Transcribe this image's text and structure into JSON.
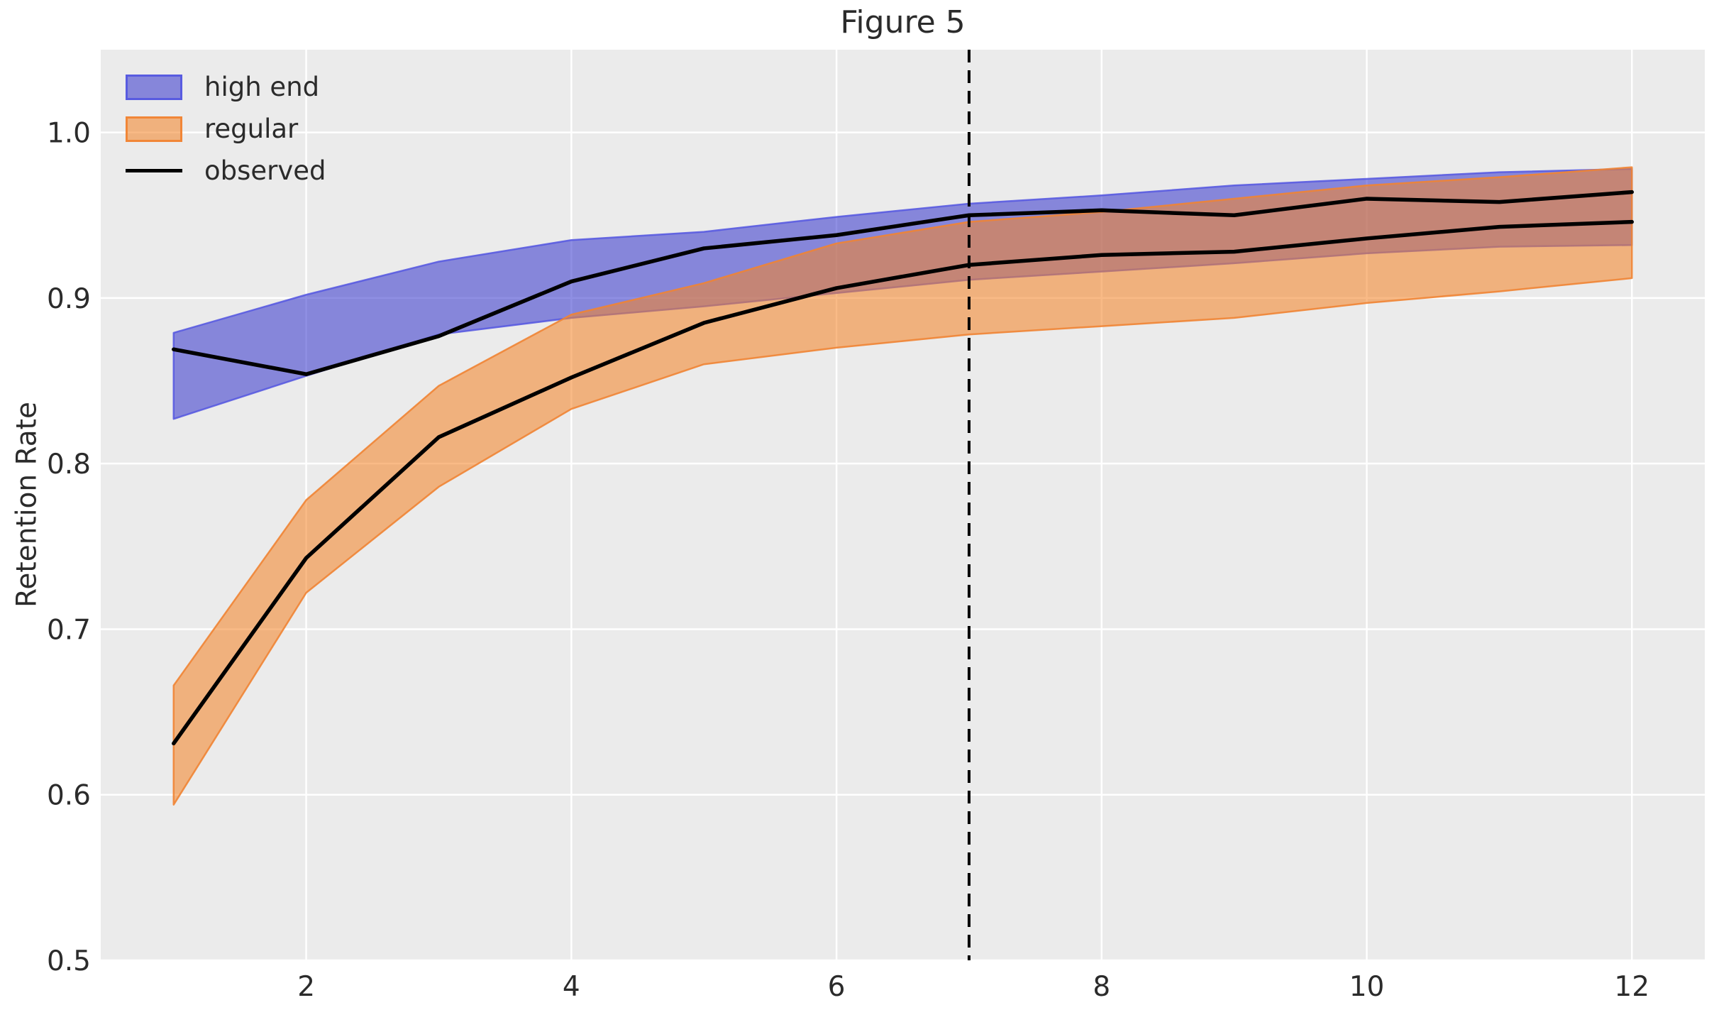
{
  "figure": {
    "title": "Figure 5",
    "ylabel": "Retention Rate"
  },
  "legend": {
    "position": "upper left",
    "items": [
      {
        "label": "high end",
        "swatch": "patch",
        "color_key": "high_end"
      },
      {
        "label": "regular",
        "swatch": "patch",
        "color_key": "regular"
      },
      {
        "label": "observed",
        "swatch": "line",
        "color_key": "observed"
      }
    ]
  },
  "colors": {
    "figure_background": "#ffffff",
    "axes_background": "#ebebeb",
    "grid": "#ffffff",
    "high_end_fill": "#3333cc",
    "high_end_edge": "#5356e0",
    "regular_fill": "#f58427",
    "regular_edge": "#f08434",
    "observed_line": "#000000",
    "vline": "#000000",
    "text": "#2b2b2b"
  },
  "chart_data": {
    "type": "area",
    "title": "Figure 5",
    "xlabel": "",
    "ylabel": "Retention Rate",
    "grid": true,
    "x": [
      1,
      2,
      3,
      4,
      5,
      6,
      7,
      8,
      9,
      10,
      11,
      12
    ],
    "series": [
      {
        "name": "high end",
        "kind": "band",
        "upper": [
          0.879,
          0.902,
          0.922,
          0.935,
          0.94,
          0.949,
          0.957,
          0.962,
          0.968,
          0.972,
          0.976,
          0.978
        ],
        "lower": [
          0.827,
          0.853,
          0.878,
          0.888,
          0.895,
          0.903,
          0.911,
          0.916,
          0.921,
          0.927,
          0.931,
          0.932
        ]
      },
      {
        "name": "regular",
        "kind": "band",
        "upper": [
          0.666,
          0.778,
          0.847,
          0.89,
          0.909,
          0.933,
          0.946,
          0.952,
          0.96,
          0.968,
          0.973,
          0.979
        ],
        "lower": [
          0.594,
          0.722,
          0.786,
          0.833,
          0.86,
          0.87,
          0.878,
          0.883,
          0.888,
          0.897,
          0.904,
          0.912
        ]
      },
      {
        "name": "observed (high end)",
        "kind": "line",
        "values": [
          0.869,
          0.854,
          0.877,
          0.91,
          0.93,
          0.938,
          0.95,
          0.953,
          0.95,
          0.96,
          0.958,
          0.964
        ]
      },
      {
        "name": "observed (regular)",
        "kind": "line",
        "values": [
          0.631,
          0.743,
          0.816,
          0.852,
          0.885,
          0.906,
          0.92,
          0.926,
          0.928,
          0.936,
          0.943,
          0.946
        ]
      }
    ],
    "vline_x": 7,
    "vline_style": "dashed",
    "xlim": [
      0.45,
      12.55
    ],
    "ylim": [
      0.5,
      1.05
    ],
    "xticks": [
      2,
      4,
      6,
      8,
      10,
      12
    ],
    "xtick_labels": [
      "2",
      "4",
      "6",
      "8",
      "10",
      "12"
    ],
    "yticks": [
      0.5,
      0.6,
      0.7,
      0.8,
      0.9,
      1.0
    ],
    "ytick_labels": [
      "0.5",
      "0.6",
      "0.7",
      "0.8",
      "0.9",
      "1.0"
    ],
    "legend_position": "upper left"
  }
}
